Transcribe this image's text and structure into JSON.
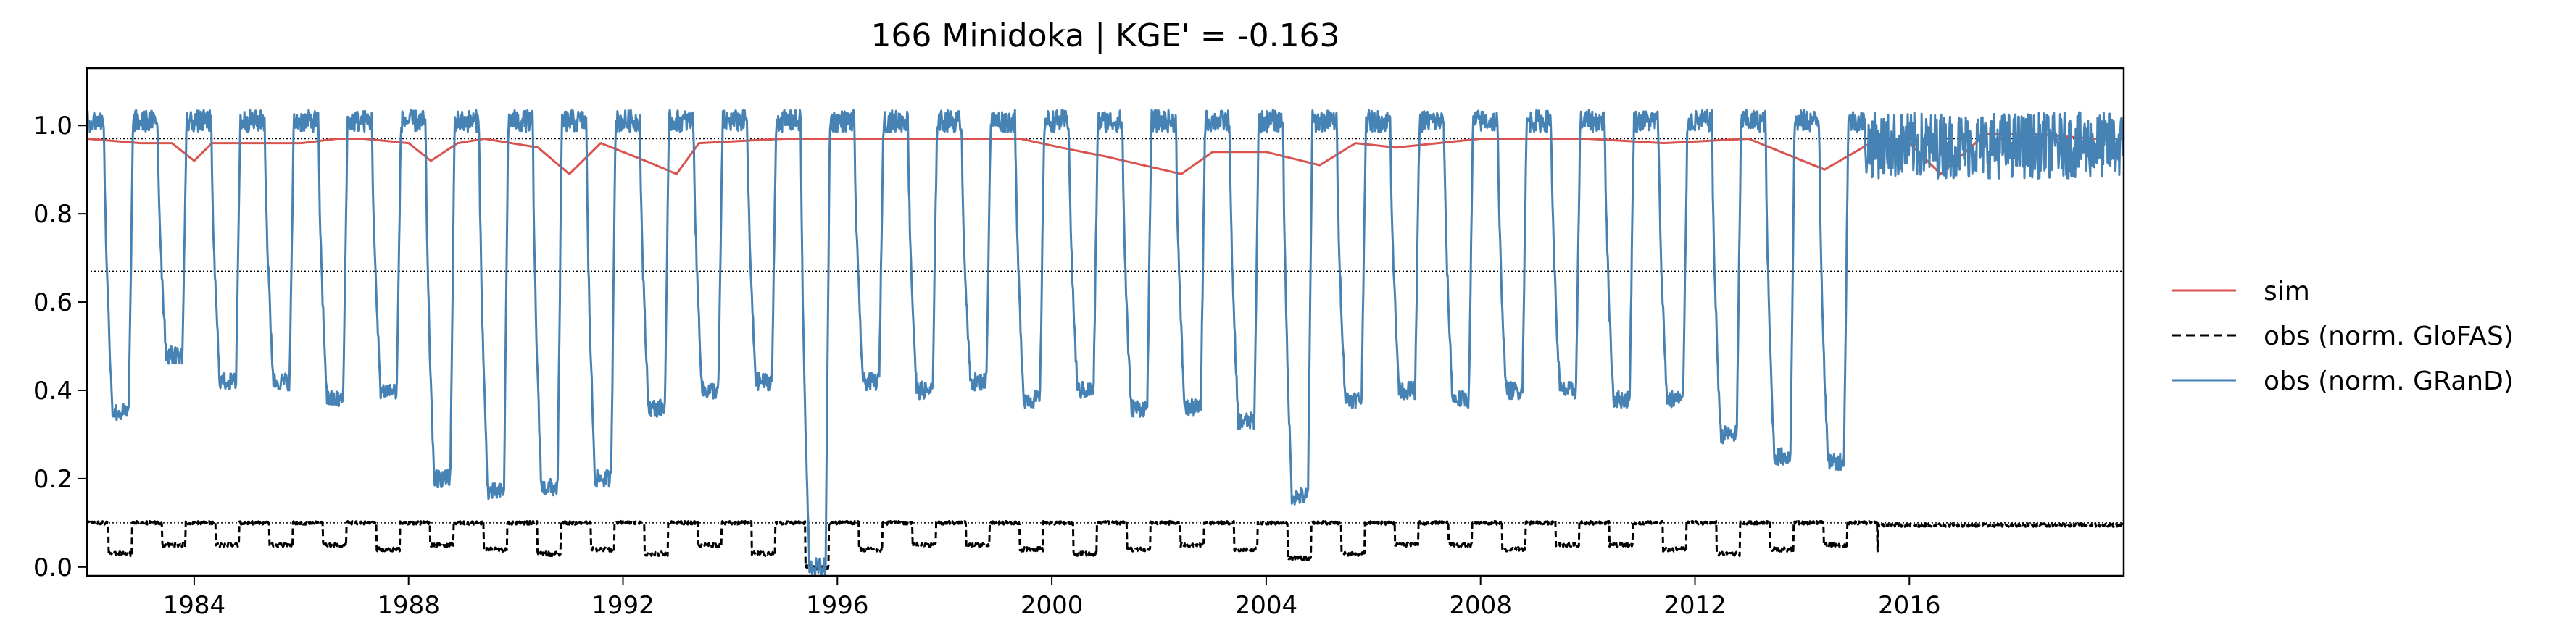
{
  "chart_data": {
    "type": "line",
    "title": "166  Minidoka | KGE' = -0.163",
    "xlabel": "",
    "ylabel": "",
    "xlim": [
      "1982-01-01",
      "2019-12-31"
    ],
    "ylim": [
      -0.02,
      1.13
    ],
    "x_ticks": [
      "1984",
      "1988",
      "1992",
      "1996",
      "2000",
      "2004",
      "2008",
      "2012",
      "2016"
    ],
    "y_ticks": [
      "0.0",
      "0.2",
      "0.4",
      "0.6",
      "0.8",
      "1.0"
    ],
    "reference_lines": [
      0.1,
      0.67,
      0.97
    ],
    "legend_position": "right",
    "colors": {
      "sim": "#d9534f",
      "glofas": "#000000",
      "grand": "#4682b4",
      "reference": "#000000"
    },
    "series": [
      {
        "name": "sim",
        "style": "solid",
        "points": [
          [
            "1982-01",
            0.97
          ],
          [
            "1983-01",
            0.96
          ],
          [
            "1983-08",
            0.96
          ],
          [
            "1984-01",
            0.92
          ],
          [
            "1984-05",
            0.96
          ],
          [
            "1985-01",
            0.96
          ],
          [
            "1986-01",
            0.96
          ],
          [
            "1986-09",
            0.97
          ],
          [
            "1987-03",
            0.97
          ],
          [
            "1988-01",
            0.96
          ],
          [
            "1988-06",
            0.92
          ],
          [
            "1988-12",
            0.96
          ],
          [
            "1989-06",
            0.97
          ],
          [
            "1990-06",
            0.95
          ],
          [
            "1991-01",
            0.89
          ],
          [
            "1991-08",
            0.96
          ],
          [
            "1992-06",
            0.92
          ],
          [
            "1993-01",
            0.89
          ],
          [
            "1993-06",
            0.96
          ],
          [
            "1995-01",
            0.97
          ],
          [
            "1996-06",
            0.97
          ],
          [
            "1998-06",
            0.97
          ],
          [
            "1999-06",
            0.97
          ],
          [
            "2000-03",
            0.95
          ],
          [
            "2001-01",
            0.93
          ],
          [
            "2002-06",
            0.89
          ],
          [
            "2003-01",
            0.94
          ],
          [
            "2004-01",
            0.94
          ],
          [
            "2005-01",
            0.91
          ],
          [
            "2005-09",
            0.96
          ],
          [
            "2006-06",
            0.95
          ],
          [
            "2008-01",
            0.97
          ],
          [
            "2010-01",
            0.97
          ],
          [
            "2011-06",
            0.96
          ],
          [
            "2013-01",
            0.97
          ],
          [
            "2014-06",
            0.9
          ],
          [
            "2015-06",
            0.97
          ],
          [
            "2016-01",
            0.96
          ],
          [
            "2016-08",
            0.89
          ],
          [
            "2017-06",
            0.98
          ],
          [
            "2018-06",
            0.98
          ],
          [
            "2019-06",
            0.97
          ],
          [
            "2019-12",
            0.97
          ]
        ]
      },
      {
        "name": "obs (norm. GloFAS)",
        "style": "dashed",
        "start_year": 1982,
        "yearly_low": [
          0.03,
          0.05,
          0.05,
          0.05,
          0.05,
          0.04,
          0.05,
          0.04,
          0.03,
          0.04,
          0.03,
          0.05,
          0.03,
          0.0,
          0.04,
          0.05,
          0.05,
          0.04,
          0.03,
          0.04,
          0.05,
          0.04,
          0.02,
          0.03,
          0.05,
          0.05,
          0.04,
          0.05,
          0.05,
          0.04,
          0.03,
          0.04,
          0.05,
          0.04
        ],
        "high": 0.1,
        "continuous_from": "2015-06",
        "continuous_value": 0.095
      },
      {
        "name": "obs (norm. GRanD)",
        "style": "solid",
        "start_year": 1982,
        "yearly_low": [
          0.35,
          0.48,
          0.42,
          0.42,
          0.38,
          0.4,
          0.2,
          0.17,
          0.18,
          0.2,
          0.36,
          0.4,
          0.42,
          0.0,
          0.42,
          0.4,
          0.42,
          0.38,
          0.4,
          0.36,
          0.36,
          0.33,
          0.16,
          0.38,
          0.4,
          0.38,
          0.4,
          0.4,
          0.38,
          0.38,
          0.3,
          0.25,
          0.24,
          0.21
        ],
        "high": 1.01,
        "continuous_from": "2015-03",
        "continuous_band": [
          0.88,
          1.03
        ]
      }
    ]
  }
}
